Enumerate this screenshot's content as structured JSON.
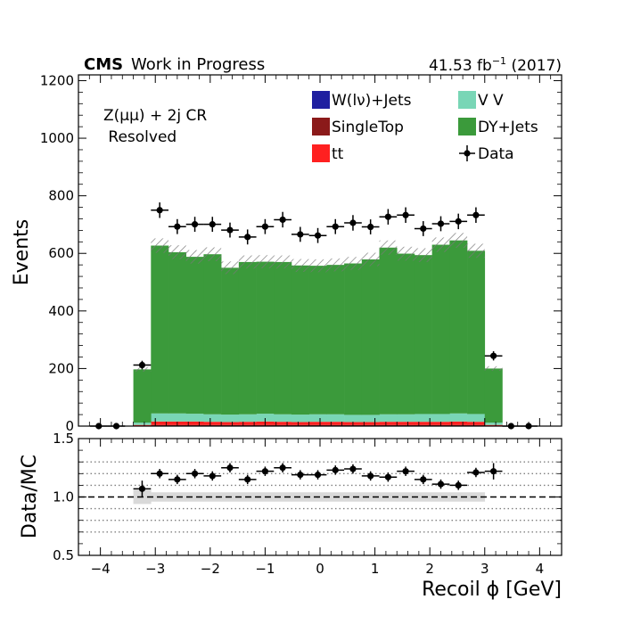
{
  "header": {
    "cms_label": "CMS",
    "status_label": "Work in Progress",
    "lumi_value": "41.53 fb",
    "lumi_exp": "−1",
    "lumi_year": "(2017)"
  },
  "region": {
    "line1": "Z(μμ) + 2j CR",
    "line2": " Resolved"
  },
  "colors": {
    "wjets": "#1f1fa0",
    "singletop": "#8b1a1a",
    "tt": "#ff2020",
    "vv": "#79d6b6",
    "dyjets": "#3b9a3b",
    "data": "#000000",
    "ratio_band": "#d9d9d9"
  },
  "chart_data": [
    {
      "type": "bar",
      "name": "main",
      "stacked": true,
      "ylabel": "Events",
      "ylim": [
        0,
        1220
      ],
      "xlim": [
        -4.4,
        4.4
      ],
      "yticks": [
        0,
        200,
        400,
        600,
        800,
        1000,
        1200
      ],
      "legend_placement": "top-right",
      "bin_edges": [
        -3.4,
        -3.08,
        -2.76,
        -2.44,
        -2.12,
        -1.8,
        -1.48,
        -1.16,
        -0.84,
        -0.52,
        -0.2,
        0.12,
        0.44,
        0.76,
        1.08,
        1.4,
        1.72,
        2.04,
        2.36,
        2.68,
        3.0,
        3.32
      ],
      "series": [
        {
          "name": "W(lν)+Jets",
          "color_key": "wjets",
          "legend": true,
          "values": [
            0,
            1,
            1,
            1,
            1,
            1,
            1,
            1,
            1,
            1,
            1,
            1,
            1,
            1,
            1,
            1,
            1,
            1,
            1,
            1,
            0
          ]
        },
        {
          "name": "SingleTop",
          "color_key": "singletop",
          "legend": true,
          "values": [
            1,
            3,
            3,
            3,
            3,
            3,
            3,
            3,
            3,
            3,
            3,
            3,
            3,
            3,
            3,
            3,
            3,
            3,
            3,
            3,
            1
          ]
        },
        {
          "name": "tt",
          "color_key": "tt",
          "legend": true,
          "values": [
            3,
            12,
            12,
            12,
            11,
            10,
            11,
            12,
            11,
            10,
            11,
            11,
            10,
            10,
            11,
            11,
            11,
            11,
            12,
            11,
            3
          ]
        },
        {
          "name": "V V",
          "color_key": "vv",
          "legend": true,
          "values": [
            8,
            28,
            28,
            27,
            26,
            26,
            26,
            27,
            26,
            26,
            26,
            26,
            25,
            25,
            26,
            26,
            27,
            27,
            28,
            27,
            8
          ]
        },
        {
          "name": "DY+Jets",
          "color_key": "dyjets",
          "legend": true,
          "values": [
            185,
            583,
            560,
            545,
            556,
            510,
            529,
            528,
            529,
            518,
            516,
            519,
            526,
            540,
            579,
            558,
            552,
            588,
            601,
            567,
            188
          ]
        }
      ],
      "uncertainty_band": {
        "hatch": true,
        "rel_half_width": [
          0.04,
          0.04,
          0.04,
          0.04,
          0.04,
          0.04,
          0.04,
          0.04,
          0.04,
          0.04,
          0.04,
          0.04,
          0.04,
          0.04,
          0.04,
          0.04,
          0.04,
          0.04,
          0.04,
          0.04,
          0.04
        ]
      },
      "data": {
        "name": "Data",
        "x": [
          -4.03,
          -3.71,
          -3.24,
          -2.92,
          -2.6,
          -2.28,
          -1.96,
          -1.64,
          -1.32,
          -1.0,
          -0.68,
          -0.36,
          -0.04,
          0.28,
          0.6,
          0.92,
          1.24,
          1.56,
          1.88,
          2.2,
          2.52,
          2.84,
          3.16,
          3.48,
          3.8
        ],
        "y": [
          0,
          0,
          212,
          750,
          693,
          701,
          701,
          681,
          657,
          693,
          717,
          666,
          662,
          693,
          706,
          692,
          727,
          733,
          686,
          703,
          711,
          733,
          244,
          0,
          0
        ],
        "yerr": [
          0,
          0,
          15,
          27,
          26,
          26,
          26,
          26,
          26,
          26,
          27,
          26,
          26,
          26,
          27,
          26,
          27,
          27,
          26,
          26,
          27,
          27,
          16,
          0,
          0
        ]
      }
    },
    {
      "type": "scatter",
      "name": "ratio",
      "ylabel": "Data/MC",
      "xlabel": "Recoil ϕ [GeV]",
      "ylim": [
        0.5,
        1.5
      ],
      "yticks": [
        0.5,
        1.0,
        1.5
      ],
      "ytick_labels": [
        "0.5",
        "1.0",
        "1.5"
      ],
      "xticks": [
        -4,
        -3,
        -2,
        -1,
        0,
        1,
        2,
        3,
        4
      ],
      "xtick_labels": [
        "−4",
        "−3",
        "−2",
        "−1",
        "0",
        "1",
        "2",
        "3",
        "4"
      ],
      "dotted_lines": [
        0.7,
        0.8,
        0.9,
        1.1,
        1.2,
        1.3
      ],
      "reference_line": 1.0,
      "x": [
        -3.24,
        -2.92,
        -2.6,
        -2.28,
        -1.96,
        -1.64,
        -1.32,
        -1.0,
        -0.68,
        -0.36,
        -0.04,
        0.28,
        0.6,
        0.92,
        1.24,
        1.56,
        1.88,
        2.2,
        2.52,
        2.84,
        3.16
      ],
      "y": [
        1.07,
        1.2,
        1.15,
        1.2,
        1.18,
        1.25,
        1.15,
        1.22,
        1.25,
        1.19,
        1.19,
        1.23,
        1.24,
        1.18,
        1.17,
        1.22,
        1.15,
        1.11,
        1.1,
        1.21,
        1.22
      ],
      "yerr": [
        0.07,
        0.04,
        0.04,
        0.04,
        0.04,
        0.04,
        0.04,
        0.04,
        0.04,
        0.04,
        0.04,
        0.04,
        0.04,
        0.04,
        0.04,
        0.04,
        0.04,
        0.04,
        0.04,
        0.04,
        0.07
      ],
      "mc_band": {
        "bin_edges": [
          -3.4,
          -3.08,
          -2.76,
          -2.44,
          -2.12,
          -1.8,
          -1.48,
          -1.16,
          -0.84,
          -0.52,
          -0.2,
          0.12,
          0.44,
          0.76,
          1.08,
          1.4,
          1.72,
          2.04,
          2.36,
          2.68,
          3.0
        ],
        "half_width": [
          0.06,
          0.04,
          0.04,
          0.04,
          0.04,
          0.04,
          0.04,
          0.04,
          0.04,
          0.04,
          0.04,
          0.04,
          0.04,
          0.04,
          0.04,
          0.04,
          0.04,
          0.04,
          0.04,
          0.04
        ]
      }
    }
  ]
}
